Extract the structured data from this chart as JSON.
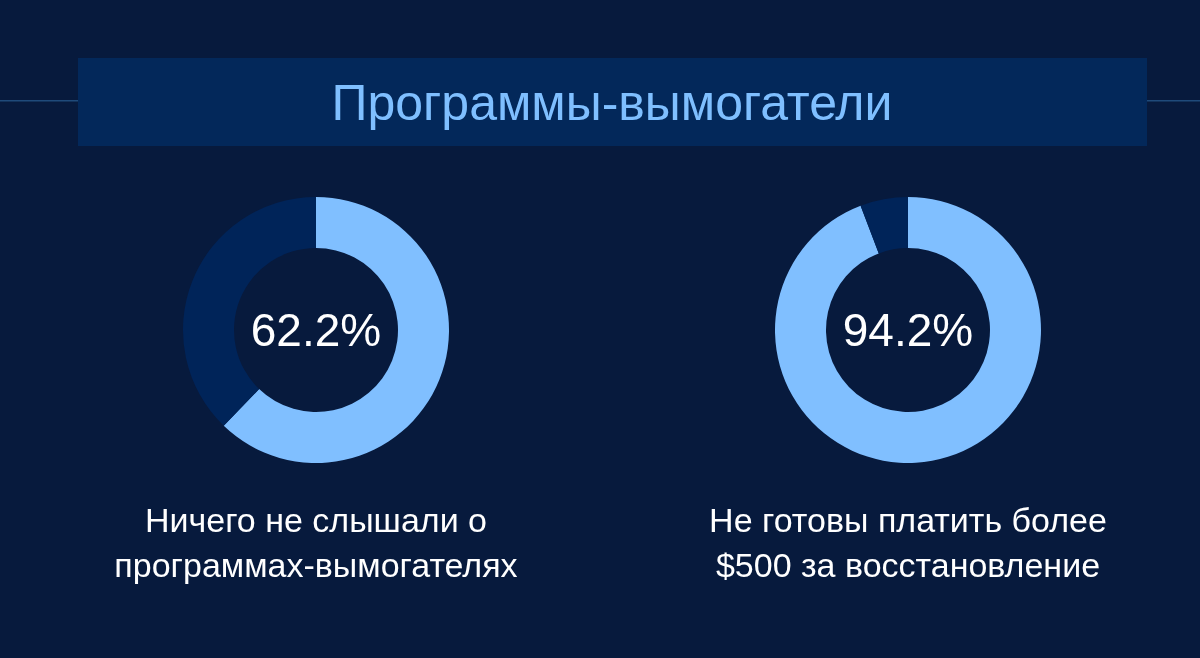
{
  "chart_data": [
    {
      "type": "donut",
      "title": "Программы-вымогатели",
      "categories": [
        "Ничего не слышали о программах-вымогателях",
        null
      ],
      "values": [
        62.2,
        37.8
      ],
      "colors": [
        "#80bfff",
        "#002459"
      ],
      "value_labels": [
        "62.2%",
        null
      ]
    },
    {
      "type": "donut",
      "categories": [
        "Не готовы платить более $500 за восстановление",
        null
      ],
      "values": [
        94.2,
        5.8
      ],
      "colors": [
        "#80bfff",
        "#002459"
      ],
      "value_labels": [
        "94.2%",
        null
      ]
    }
  ]
}
